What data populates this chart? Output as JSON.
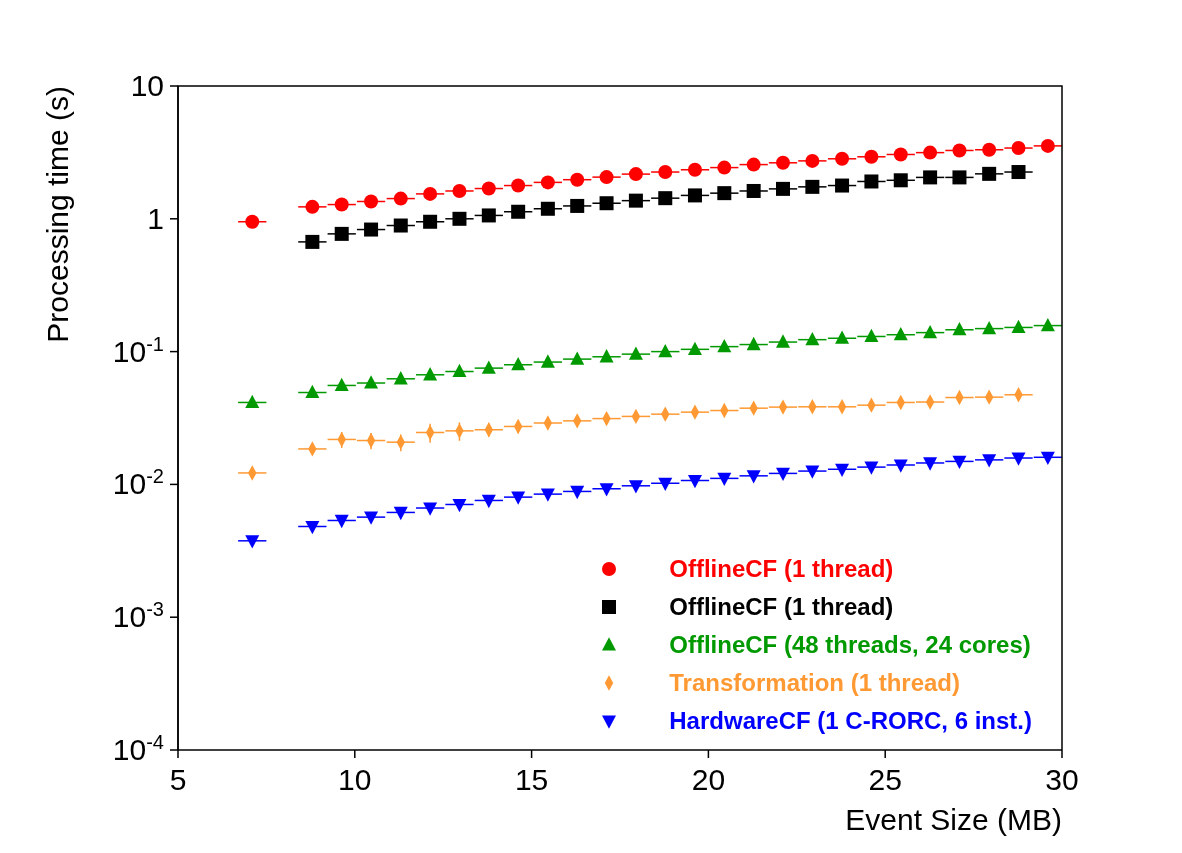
{
  "chart_data": {
    "type": "scatter",
    "xlabel": "Event Size (MB)",
    "ylabel": "Processing time (s)",
    "log": "y",
    "xlim": [
      5,
      30
    ],
    "xticks": [
      5,
      10,
      15,
      20,
      25,
      30
    ],
    "ylim": [
      0.0001,
      10
    ],
    "yticks": [
      {
        "value": 0.0001,
        "label": "10$^{-4}$"
      },
      {
        "value": 0.001,
        "label": "10$^{-3}$"
      },
      {
        "value": 0.01,
        "label": "10$^{-2}$"
      },
      {
        "value": 0.1,
        "label": "10$^{-1}$"
      },
      1,
      10
    ],
    "grid": false,
    "legend": "bottom right",
    "series": [
      {
        "name": "OfflineCF (1 thread)",
        "color": "#ff0000",
        "marker": "circle",
        "x": [
          7.1,
          8.8,
          9.63,
          10.46,
          11.3,
          12.13,
          12.96,
          13.79,
          14.62,
          15.46,
          16.29,
          17.12,
          17.95,
          18.78,
          19.62,
          20.45,
          21.28,
          22.11,
          22.94,
          23.78,
          24.61,
          25.44,
          26.27,
          27.1,
          27.94,
          28.77,
          29.6
        ],
        "values": [
          0.95,
          1.23,
          1.28,
          1.35,
          1.42,
          1.54,
          1.62,
          1.69,
          1.78,
          1.88,
          1.97,
          2.06,
          2.17,
          2.25,
          2.34,
          2.43,
          2.56,
          2.64,
          2.73,
          2.83,
          2.93,
          3.05,
          3.15,
          3.27,
          3.31,
          3.41,
          3.54
        ],
        "xerrors": [
          0.4,
          0.4,
          0.4,
          0.4,
          0.4,
          0.4,
          0.4,
          0.4,
          0.4,
          0.4,
          0.4,
          0.4,
          0.4,
          0.4,
          0.4,
          0.4,
          0.4,
          0.4,
          0.4,
          0.4,
          0.4,
          0.4,
          0.4,
          0.4,
          0.4,
          0.4,
          0.4
        ]
      },
      {
        "name": "OfflineCF (1 thread)",
        "color": "#000000",
        "marker": "square",
        "x": [
          8.8,
          9.63,
          10.46,
          11.3,
          12.13,
          12.96,
          13.79,
          14.62,
          15.46,
          16.29,
          17.12,
          17.95,
          18.78,
          19.62,
          20.45,
          21.28,
          22.11,
          22.94,
          23.78,
          24.61,
          25.44,
          26.27,
          27.1,
          27.94,
          28.77
        ],
        "values": [
          0.67,
          0.77,
          0.83,
          0.89,
          0.95,
          1.0,
          1.06,
          1.13,
          1.19,
          1.25,
          1.31,
          1.37,
          1.43,
          1.5,
          1.56,
          1.62,
          1.68,
          1.74,
          1.78,
          1.91,
          1.95,
          2.05,
          2.05,
          2.18,
          2.25
        ],
        "xerrors": [
          0.4,
          0.4,
          0.4,
          0.4,
          0.4,
          0.4,
          0.4,
          0.4,
          0.4,
          0.4,
          0.4,
          0.4,
          0.4,
          0.4,
          0.4,
          0.4,
          0.4,
          0.4,
          0.4,
          0.4,
          0.4,
          0.4,
          0.4,
          0.4,
          0.4
        ]
      },
      {
        "name": "OfflineCF (48 threads, 24 cores)",
        "color": "#009900",
        "marker": "triangle",
        "x": [
          7.1,
          8.8,
          9.63,
          10.46,
          11.3,
          12.13,
          12.96,
          13.79,
          14.62,
          15.46,
          16.29,
          17.12,
          17.95,
          18.78,
          19.62,
          20.45,
          21.28,
          22.11,
          22.94,
          23.78,
          24.61,
          25.44,
          26.27,
          27.1,
          27.94,
          28.77,
          29.6
        ],
        "values": [
          0.0414,
          0.0492,
          0.0556,
          0.058,
          0.0624,
          0.0669,
          0.0708,
          0.0751,
          0.0796,
          0.0834,
          0.0878,
          0.0914,
          0.0957,
          0.1,
          0.104,
          0.109,
          0.113,
          0.118,
          0.123,
          0.126,
          0.13,
          0.134,
          0.139,
          0.146,
          0.149,
          0.152,
          0.157
        ],
        "xerrors": [
          0.4,
          0.4,
          0.4,
          0.4,
          0.4,
          0.4,
          0.4,
          0.4,
          0.4,
          0.4,
          0.4,
          0.4,
          0.4,
          0.4,
          0.4,
          0.4,
          0.4,
          0.4,
          0.4,
          0.4,
          0.4,
          0.4,
          0.4,
          0.4,
          0.4,
          0.4,
          0.4
        ]
      },
      {
        "name": "Transformation (1 thread)",
        "color": "#ff9933",
        "marker": "diamond",
        "x": [
          7.1,
          8.8,
          9.63,
          10.46,
          11.3,
          12.13,
          12.96,
          13.79,
          14.62,
          15.46,
          16.29,
          17.12,
          17.95,
          18.78,
          19.62,
          20.45,
          21.28,
          22.11,
          22.94,
          23.78,
          24.61,
          25.44,
          26.27,
          27.1,
          27.94,
          28.77
        ],
        "values": [
          0.0122,
          0.0185,
          0.0218,
          0.0214,
          0.0208,
          0.0246,
          0.0253,
          0.0258,
          0.0273,
          0.029,
          0.0301,
          0.0313,
          0.0325,
          0.0338,
          0.035,
          0.036,
          0.0375,
          0.0382,
          0.0384,
          0.0384,
          0.0395,
          0.0414,
          0.0417,
          0.0451,
          0.0454,
          0.0473
        ],
        "errors": [
          null,
          null,
          0.003,
          0.003,
          0.003,
          0.004,
          0.004,
          0.003,
          0.003,
          0.003,
          0.003,
          0.003,
          0.003,
          0.003,
          0.003,
          0.003,
          0.003,
          null,
          null,
          null,
          null,
          null,
          null,
          0.004,
          null,
          null
        ],
        "xerrors": [
          0.4,
          0.4,
          0.4,
          0.4,
          0.4,
          0.4,
          0.4,
          0.4,
          0.4,
          0.4,
          0.4,
          0.4,
          0.4,
          0.4,
          0.4,
          0.4,
          0.4,
          0.4,
          0.4,
          0.4,
          0.4,
          0.4,
          0.4,
          0.4,
          0.4,
          0.4
        ]
      },
      {
        "name": "HardwareCF (1 C-RORC, 6 inst.)",
        "color": "#0000ff",
        "marker": "triangle-down",
        "x": [
          7.1,
          8.8,
          9.63,
          10.46,
          11.3,
          12.13,
          12.96,
          13.79,
          14.62,
          15.46,
          16.29,
          17.12,
          17.95,
          18.78,
          19.62,
          20.45,
          21.28,
          22.11,
          22.94,
          23.78,
          24.61,
          25.44,
          26.27,
          27.1,
          27.94,
          28.77,
          29.6
        ],
        "values": [
          0.00376,
          0.00482,
          0.00535,
          0.00567,
          0.00615,
          0.00664,
          0.00706,
          0.00757,
          0.00802,
          0.00845,
          0.00885,
          0.00927,
          0.00976,
          0.0102,
          0.0107,
          0.0111,
          0.0116,
          0.0121,
          0.0126,
          0.013,
          0.0135,
          0.014,
          0.0145,
          0.0149,
          0.0153,
          0.0158,
          0.016
        ],
        "xerrors": [
          0.4,
          0.4,
          0.4,
          0.4,
          0.4,
          0.4,
          0.4,
          0.4,
          0.4,
          0.4,
          0.4,
          0.4,
          0.4,
          0.4,
          0.4,
          0.4,
          0.4,
          0.4,
          0.4,
          0.4,
          0.4,
          0.4,
          0.4,
          0.4,
          0.4,
          0.4,
          0.4
        ]
      }
    ]
  }
}
